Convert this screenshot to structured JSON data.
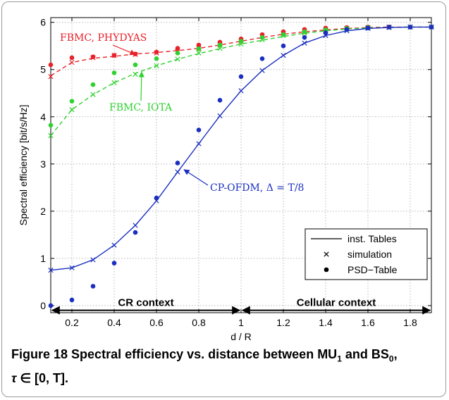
{
  "chart_data": {
    "type": "line",
    "xlabel": "d / R",
    "ylabel": "Spectral efficiency [bit/s/Hz]",
    "xlim": [
      0.1,
      1.9
    ],
    "ylim": [
      -0.15,
      6.1
    ],
    "x_ticks": [
      "0.2",
      "0.4",
      "0.6",
      "0.8",
      "1",
      "1.2",
      "1.4",
      "1.6",
      "1.8"
    ],
    "y_ticks": [
      "0",
      "1",
      "2",
      "3",
      "4",
      "5",
      "6"
    ],
    "grid": true,
    "x": [
      0.1,
      0.2,
      0.3,
      0.4,
      0.5,
      0.6,
      0.7,
      0.8,
      0.9,
      1.0,
      1.1,
      1.2,
      1.3,
      1.4,
      1.5,
      1.6,
      1.7,
      1.8,
      1.9
    ],
    "series": [
      {
        "name": "FBMC, PHYDYAS",
        "color": "#e8222a",
        "line_style": "dashed",
        "tables": [
          4.87,
          5.15,
          5.24,
          5.28,
          5.33,
          5.36,
          5.4,
          5.45,
          5.52,
          5.6,
          5.68,
          5.75,
          5.8,
          5.84,
          5.87,
          5.89,
          5.9,
          5.9,
          5.9
        ],
        "simulation": [
          4.85,
          5.15,
          5.25,
          5.3,
          5.32,
          5.35,
          5.38,
          5.45,
          5.52,
          5.6,
          5.7,
          5.76,
          5.8,
          5.83,
          5.87,
          5.89,
          5.9,
          5.9,
          5.9
        ],
        "psd_table": [
          5.1,
          5.25,
          5.27,
          5.3,
          5.33,
          5.37,
          5.45,
          5.52,
          5.58,
          5.65,
          5.74,
          5.8,
          5.85,
          5.88,
          5.89,
          5.9,
          5.9,
          5.9,
          5.9
        ]
      },
      {
        "name": "FBMC, IOTA",
        "color": "#2ed12e",
        "line_style": "dashed",
        "tables": [
          3.6,
          4.15,
          4.47,
          4.72,
          4.92,
          5.08,
          5.22,
          5.34,
          5.44,
          5.54,
          5.62,
          5.7,
          5.77,
          5.82,
          5.86,
          5.88,
          5.89,
          5.9,
          5.9
        ],
        "simulation": [
          3.6,
          4.15,
          4.47,
          4.72,
          4.9,
          5.08,
          5.22,
          5.35,
          5.45,
          5.54,
          5.63,
          5.72,
          5.77,
          5.82,
          5.86,
          5.88,
          5.89,
          5.9,
          5.9
        ],
        "psd_table": [
          3.82,
          4.33,
          4.68,
          4.93,
          5.1,
          5.23,
          5.35,
          5.44,
          5.52,
          5.6,
          5.68,
          5.74,
          5.8,
          5.84,
          5.87,
          5.89,
          5.9,
          5.9,
          5.9
        ]
      },
      {
        "name": "CP-OFDM, Δ = T/8",
        "color": "#1a2fc0",
        "line_style": "solid",
        "tables": [
          0.75,
          0.8,
          0.97,
          1.28,
          1.7,
          2.22,
          2.83,
          3.43,
          4.02,
          4.55,
          4.98,
          5.3,
          5.56,
          5.72,
          5.82,
          5.87,
          5.89,
          5.9,
          5.9
        ],
        "simulation": [
          0.75,
          0.8,
          0.97,
          1.28,
          1.7,
          2.22,
          2.83,
          3.43,
          4.02,
          4.55,
          4.98,
          5.3,
          5.56,
          5.72,
          5.82,
          5.87,
          5.89,
          5.9,
          5.9
        ],
        "psd_table": [
          0.0,
          0.12,
          0.41,
          0.9,
          1.55,
          2.28,
          3.02,
          3.72,
          4.35,
          4.85,
          5.23,
          5.5,
          5.68,
          5.78,
          5.85,
          5.88,
          5.9,
          5.9,
          5.9
        ]
      }
    ],
    "annotations": [
      {
        "text": "FBMC, PHYDYAS",
        "series": 0,
        "target_x": 0.5,
        "target_y": 5.32
      },
      {
        "text": "FBMC, IOTA",
        "series": 1,
        "target_x": 0.53,
        "target_y": 4.95
      },
      {
        "text": "CP-OFDM, Δ = T/8",
        "series": 2,
        "target_x": 0.73,
        "target_y": 2.88
      }
    ],
    "legend": {
      "placement": "lower-right",
      "entries": [
        "inst. Tables",
        "simulation",
        "PSD−Table"
      ]
    },
    "regions": [
      {
        "label": "CR context",
        "x_from": 0.1,
        "x_to": 1.0
      },
      {
        "label": "Cellular context",
        "x_from": 1.0,
        "x_to": 1.9
      }
    ],
    "region_y": -0.1
  },
  "caption": {
    "figure_label": "Figure 18",
    "text": "Spectral efficiency vs. distance between MU",
    "sub1": "1",
    "and": " and BS",
    "sub2": "0",
    "tail_prefix": ",",
    "tau": "τ",
    "interval": " ∈ [0, T]."
  }
}
